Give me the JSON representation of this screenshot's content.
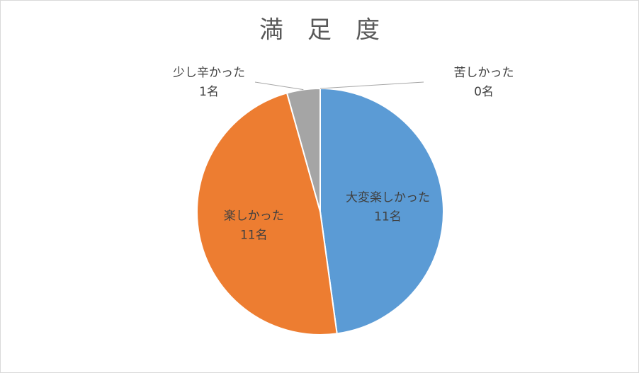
{
  "chart_data": {
    "type": "pie",
    "title": "満　足　度",
    "categories": [
      "大変楽しかった",
      "楽しかった",
      "少し辛かった",
      "苦しかった"
    ],
    "values": [
      11,
      11,
      1,
      0
    ],
    "value_labels": [
      "11名",
      "11名",
      "1名",
      "0名"
    ],
    "colors": [
      "#5b9bd5",
      "#ed7d31",
      "#a5a5a5",
      "#ffc000"
    ]
  }
}
